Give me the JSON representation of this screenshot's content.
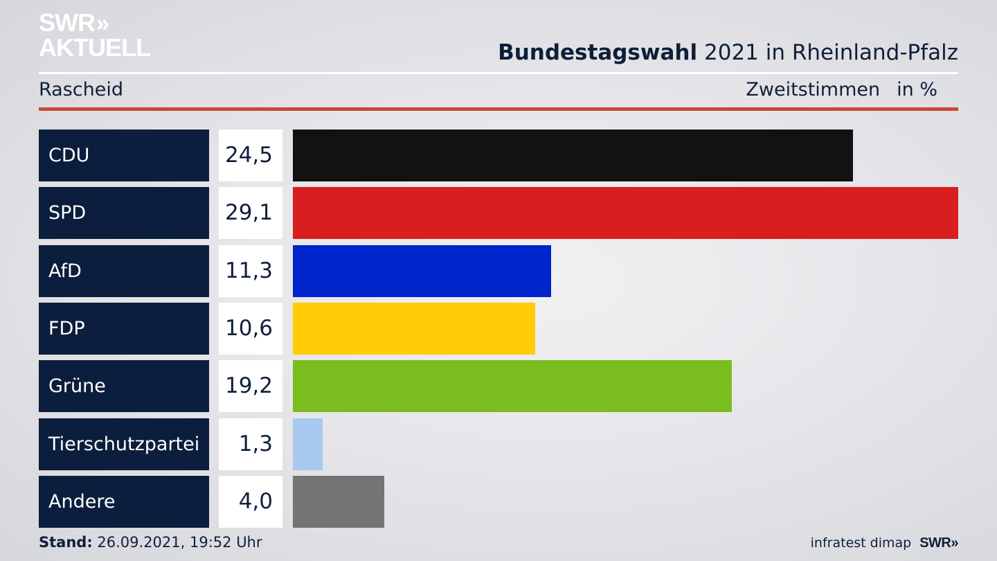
{
  "branding": {
    "logo_line1": "SWR",
    "logo_chevrons": "»",
    "logo_line2": "AKTUELL",
    "footer_logo": "SWR»"
  },
  "header": {
    "title_bold": "Bundestagswahl",
    "title_rest": "2021 in Rheinland-Pfalz",
    "region": "Rascheid",
    "measure": "Zweitstimmen",
    "unit": "in %"
  },
  "chart_data": {
    "type": "bar",
    "orientation": "horizontal",
    "title": "Bundestagswahl 2021 in Rheinland-Pfalz",
    "subtitle": "Rascheid",
    "xlabel": "Zweitstimmen in %",
    "categories": [
      "CDU",
      "SPD",
      "AfD",
      "FDP",
      "Grüne",
      "Tierschutzpartei",
      "Andere"
    ],
    "values": [
      24.5,
      29.1,
      11.3,
      10.6,
      19.2,
      1.3,
      4.0
    ],
    "value_labels": [
      "24,5",
      "29,1",
      "11,3",
      "10,6",
      "19,2",
      "1,3",
      "4,0"
    ],
    "colors": [
      "#121212",
      "#d81e1e",
      "#0024cc",
      "#ffcc05",
      "#79be1e",
      "#a9c8f0",
      "#747475"
    ],
    "xlim": [
      0,
      29.1
    ],
    "grid": false
  },
  "footer": {
    "stand_label": "Stand:",
    "stand_value": "26.09.2021, 19:52 Uhr",
    "source": "infratest dimap"
  }
}
